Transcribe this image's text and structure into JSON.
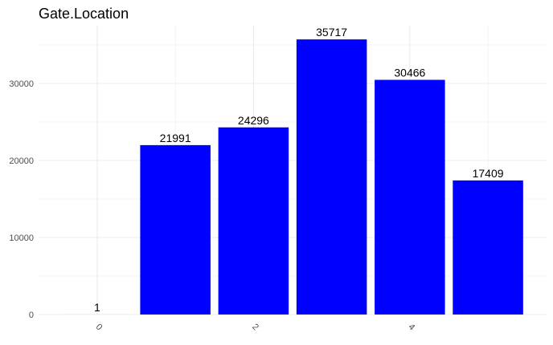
{
  "chart_data": {
    "type": "bar",
    "title": "Gate.Location",
    "xlabel": "",
    "ylabel": "",
    "x": [
      0,
      1,
      2,
      3,
      4,
      5
    ],
    "values": [
      1,
      21991,
      24296,
      35717,
      30466,
      17409
    ],
    "data_labels": [
      "1",
      "21991",
      "24296",
      "35717",
      "30466",
      "17409"
    ],
    "x_ticks": [
      0,
      2,
      4
    ],
    "x_tick_labels": [
      "0",
      "2",
      "4"
    ],
    "y_ticks": [
      0,
      10000,
      20000,
      30000
    ],
    "y_tick_labels": [
      "0",
      "10000",
      "20000",
      "30000"
    ],
    "ylim": [
      0,
      37500
    ],
    "xlim": [
      -0.75,
      5.75
    ],
    "grid": true,
    "legend": "none",
    "bar_color": "#0000ff",
    "grid_color": "#ebebeb",
    "tick_label_color": "#4d4d4d"
  }
}
